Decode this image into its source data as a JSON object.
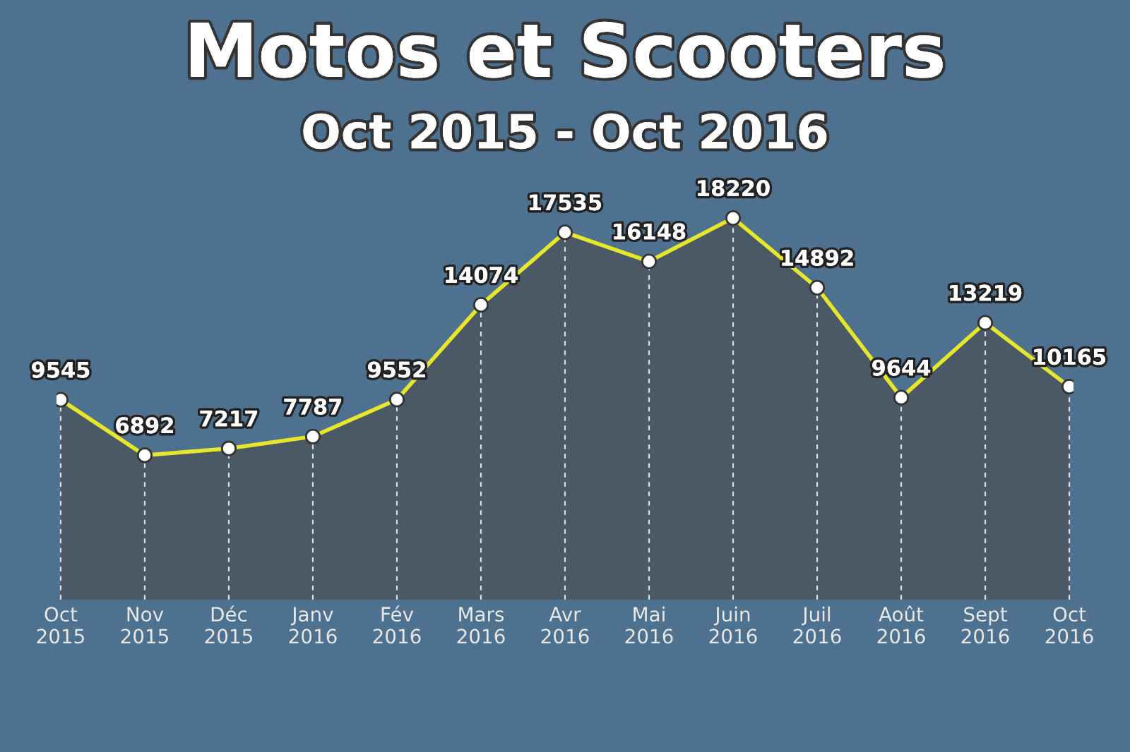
{
  "chart_data": {
    "type": "area",
    "title": "Motos et Scooters",
    "subtitle": "Oct 2015 - Oct 2016",
    "categories": [
      "Oct\n2015",
      "Nov\n2015",
      "Déc\n2015",
      "Janv\n2016",
      "Fév\n2016",
      "Mars\n2016",
      "Avr\n2016",
      "Mai\n2016",
      "Juin\n2016",
      "Juil\n2016",
      "Août\n2016",
      "Sept\n2016",
      "Oct\n2016"
    ],
    "series": [
      {
        "color": "#e6e62a",
        "values": [
          9545,
          6892,
          7217,
          7787,
          9552,
          14074,
          17535,
          16148,
          18220,
          14892,
          9644,
          13219,
          10165
        ]
      }
    ],
    "tick_labels": "x",
    "data_labels": true,
    "marker": "circle",
    "grid": "x"
  }
}
